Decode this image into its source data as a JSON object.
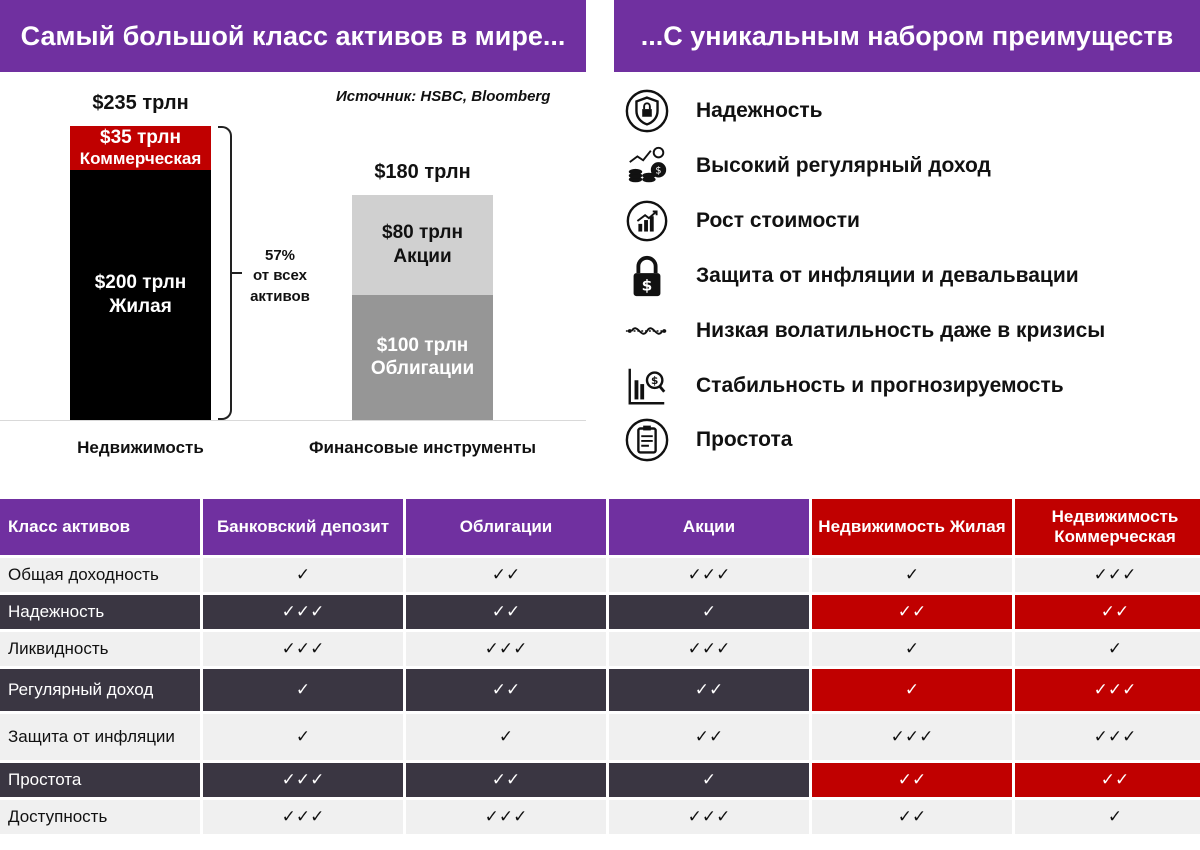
{
  "header": {
    "left_title": "Самый большой класс активов в мире...",
    "right_title": "...С уникальным набором преимуществ"
  },
  "source": "Источник: HSBC, Bloomberg",
  "chart_data": {
    "type": "bar",
    "stacked": true,
    "unit": "трлн",
    "categories": [
      "Недвижимость",
      "Финансовые инструменты"
    ],
    "totals": [
      "$235 трлн",
      "$180 трлн"
    ],
    "total_values": [
      235,
      180
    ],
    "segments": [
      {
        "category": "Недвижимость",
        "parts": [
          {
            "name": "Жилая",
            "value": 200,
            "label": "$200 трлн",
            "color": "#000000"
          },
          {
            "name": "Коммерческая",
            "value": 35,
            "label": "$35 трлн",
            "color": "#c00000"
          }
        ]
      },
      {
        "category": "Финансовые инструменты",
        "parts": [
          {
            "name": "Облигации",
            "value": 100,
            "label": "$100 трлн",
            "color": "#969696"
          },
          {
            "name": "Акции",
            "value": 80,
            "label": "$80 трлн",
            "color": "#d0d0d0"
          }
        ]
      }
    ],
    "annotation": {
      "lines": [
        "57%",
        "от всех",
        "активов"
      ]
    }
  },
  "benefits": [
    {
      "label": "Надежность",
      "icon": "shield-lock-icon"
    },
    {
      "label": "Высокий регулярный доход",
      "icon": "coins-money-icon"
    },
    {
      "label": "Рост стоимости",
      "icon": "growth-chart-icon"
    },
    {
      "label": "Защита от инфляции и девальвации",
      "icon": "padlock-dollar-icon"
    },
    {
      "label": "Низкая волатильность даже в кризисы",
      "icon": "low-volatility-icon"
    },
    {
      "label": "Стабильность и прогнозируемость",
      "icon": "stability-chart-icon"
    },
    {
      "label": "Простота",
      "icon": "checklist-icon"
    }
  ],
  "table": {
    "headers": [
      "Класс активов",
      "Банковский депозит",
      "Облигации",
      "Акции",
      "Недвижимость Жилая",
      "Недвижимость Коммерческая"
    ],
    "rows": [
      {
        "name": "Общая доходность",
        "cells": [
          "✓",
          "✓✓",
          "✓✓✓",
          "✓",
          "✓✓✓"
        ]
      },
      {
        "name": "Надежность",
        "cells": [
          "✓✓✓",
          "✓✓",
          "✓",
          "✓✓",
          "✓✓"
        ]
      },
      {
        "name": "Ликвидность",
        "cells": [
          "✓✓✓",
          "✓✓✓",
          "✓✓✓",
          "✓",
          "✓"
        ]
      },
      {
        "name": "Регулярный доход",
        "cells": [
          "✓",
          "✓✓",
          "✓✓",
          "✓",
          "✓✓✓"
        ]
      },
      {
        "name": "Защита от инфляции",
        "cells": [
          "✓",
          "✓",
          "✓✓",
          "✓✓✓",
          "✓✓✓"
        ]
      },
      {
        "name": "Простота",
        "cells": [
          "✓✓✓",
          "✓✓",
          "✓",
          "✓✓",
          "✓✓"
        ]
      },
      {
        "name": "Доступность",
        "cells": [
          "✓✓✓",
          "✓✓✓",
          "✓✓✓",
          "✓✓",
          "✓"
        ]
      }
    ]
  }
}
